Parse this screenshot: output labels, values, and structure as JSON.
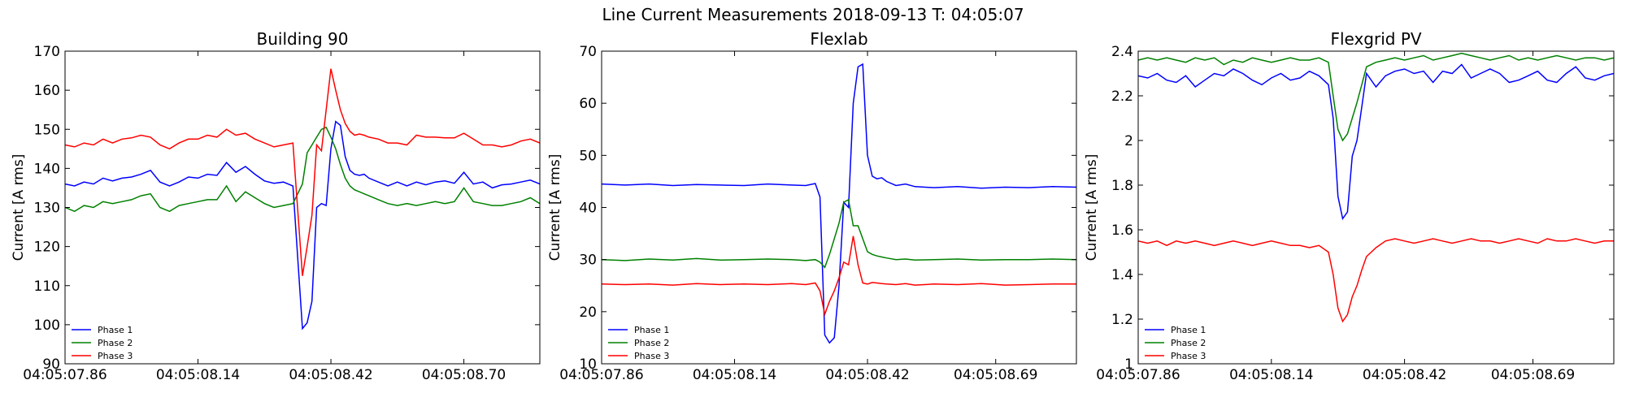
{
  "suptitle": "Line Current Measurements 2018-09-13 T: 04:05:07",
  "chart_data": [
    {
      "type": "line",
      "title": "Building 90",
      "xlabel": "",
      "ylabel": "Current [A rms]",
      "ylim": [
        90,
        170
      ],
      "yticks": [
        90,
        100,
        110,
        120,
        130,
        140,
        150,
        160,
        170
      ],
      "xlim": [
        0,
        1.0
      ],
      "xticks": [
        0,
        0.28,
        0.56,
        0.84
      ],
      "xticklabels": [
        "04:05:07.86",
        "04:05:08.14",
        "04:05:08.42",
        "04:05:08.70"
      ],
      "grid": false,
      "legend_position": "lower-left",
      "series": [
        {
          "name": "Phase 1",
          "color": "#0000ff",
          "x": [
            0,
            0.02,
            0.04,
            0.06,
            0.08,
            0.1,
            0.12,
            0.14,
            0.16,
            0.18,
            0.2,
            0.22,
            0.24,
            0.26,
            0.28,
            0.3,
            0.32,
            0.34,
            0.36,
            0.38,
            0.4,
            0.42,
            0.44,
            0.46,
            0.48,
            0.5,
            0.51,
            0.52,
            0.53,
            0.54,
            0.55,
            0.56,
            0.57,
            0.58,
            0.59,
            0.6,
            0.61,
            0.62,
            0.63,
            0.64,
            0.66,
            0.68,
            0.7,
            0.72,
            0.74,
            0.76,
            0.78,
            0.8,
            0.82,
            0.84,
            0.86,
            0.88,
            0.9,
            0.92,
            0.94,
            0.96,
            0.98,
            1.0
          ],
          "y": [
            136,
            135.5,
            136.5,
            136,
            137.5,
            136.8,
            137.5,
            137.8,
            138.5,
            139.5,
            136.5,
            135.5,
            136.5,
            137.8,
            137.5,
            138.5,
            138.2,
            141.5,
            139,
            140.5,
            138.5,
            136.8,
            136.2,
            136.5,
            135.5,
            99,
            100.5,
            106,
            130,
            131,
            130.5,
            145,
            152,
            151,
            143,
            139.5,
            138.5,
            138.2,
            138.5,
            137.5,
            136.5,
            135.5,
            136.5,
            135.5,
            136.5,
            135.8,
            136.5,
            136.8,
            136.2,
            139,
            136,
            136.5,
            135,
            135.8,
            136,
            136.5,
            137,
            136
          ]
        },
        {
          "name": "Phase 2",
          "color": "#008000",
          "x": [
            0,
            0.02,
            0.04,
            0.06,
            0.08,
            0.1,
            0.12,
            0.14,
            0.16,
            0.18,
            0.2,
            0.22,
            0.24,
            0.26,
            0.28,
            0.3,
            0.32,
            0.34,
            0.36,
            0.38,
            0.4,
            0.42,
            0.44,
            0.46,
            0.48,
            0.5,
            0.51,
            0.52,
            0.53,
            0.54,
            0.55,
            0.56,
            0.57,
            0.58,
            0.59,
            0.6,
            0.61,
            0.62,
            0.63,
            0.64,
            0.66,
            0.68,
            0.7,
            0.72,
            0.74,
            0.76,
            0.78,
            0.8,
            0.82,
            0.84,
            0.86,
            0.88,
            0.9,
            0.92,
            0.94,
            0.96,
            0.98,
            1.0
          ],
          "y": [
            130,
            129,
            130.5,
            130,
            131.5,
            131,
            131.5,
            132,
            133,
            133.5,
            130,
            129,
            130.5,
            131,
            131.5,
            132,
            132,
            135.5,
            131.5,
            134,
            132.5,
            131,
            130,
            130.5,
            131,
            136,
            144,
            146,
            148,
            150,
            150.5,
            148,
            145,
            141,
            137.5,
            135.5,
            134.5,
            134,
            133.5,
            133,
            132,
            131,
            130.5,
            131,
            130.5,
            131,
            131.5,
            131,
            131.5,
            135,
            131.5,
            131,
            130.5,
            130.5,
            131,
            131.5,
            132.5,
            131
          ]
        },
        {
          "name": "Phase 3",
          "color": "#ff0000",
          "x": [
            0,
            0.02,
            0.04,
            0.06,
            0.08,
            0.1,
            0.12,
            0.14,
            0.16,
            0.18,
            0.2,
            0.22,
            0.24,
            0.26,
            0.28,
            0.3,
            0.32,
            0.34,
            0.36,
            0.38,
            0.4,
            0.42,
            0.44,
            0.46,
            0.48,
            0.5,
            0.51,
            0.52,
            0.53,
            0.54,
            0.55,
            0.56,
            0.57,
            0.58,
            0.59,
            0.6,
            0.61,
            0.62,
            0.63,
            0.64,
            0.66,
            0.68,
            0.7,
            0.72,
            0.74,
            0.76,
            0.78,
            0.8,
            0.82,
            0.84,
            0.86,
            0.88,
            0.9,
            0.92,
            0.94,
            0.96,
            0.98,
            1.0
          ],
          "y": [
            146,
            145.5,
            146.5,
            146,
            147.5,
            146.5,
            147.5,
            147.8,
            148.5,
            148,
            146,
            145,
            146.5,
            147.5,
            147.5,
            148.5,
            148,
            150,
            148.5,
            149,
            147.5,
            146.5,
            145.5,
            146,
            146.5,
            112.5,
            120,
            128,
            146,
            144.5,
            155,
            165.5,
            160,
            155,
            151.5,
            149.5,
            148.5,
            148.8,
            148.5,
            148,
            147.5,
            146.5,
            146.5,
            146,
            148.5,
            148,
            148,
            147.8,
            147.8,
            149,
            147.5,
            146,
            146,
            145.5,
            146,
            147,
            147.5,
            146.5
          ]
        }
      ]
    },
    {
      "type": "line",
      "title": "Flexlab",
      "xlabel": "",
      "ylabel": "Current [A rms]",
      "ylim": [
        10,
        70
      ],
      "yticks": [
        10,
        20,
        30,
        40,
        50,
        60,
        70
      ],
      "xlim": [
        0,
        1.0
      ],
      "xticks": [
        0,
        0.28,
        0.56,
        0.83
      ],
      "xticklabels": [
        "04:05:07.86",
        "04:05:08.14",
        "04:05:08.42",
        "04:05:08.69"
      ],
      "grid": false,
      "legend_position": "lower-left",
      "series": [
        {
          "name": "Phase 1",
          "color": "#0000ff",
          "x": [
            0,
            0.05,
            0.1,
            0.15,
            0.2,
            0.25,
            0.3,
            0.35,
            0.4,
            0.43,
            0.45,
            0.46,
            0.47,
            0.48,
            0.49,
            0.5,
            0.51,
            0.52,
            0.53,
            0.54,
            0.55,
            0.56,
            0.57,
            0.58,
            0.59,
            0.6,
            0.62,
            0.64,
            0.66,
            0.7,
            0.75,
            0.8,
            0.85,
            0.9,
            0.95,
            1.0
          ],
          "y": [
            44.5,
            44.3,
            44.5,
            44.2,
            44.4,
            44.3,
            44.2,
            44.5,
            44.3,
            44.2,
            44.6,
            42,
            15.5,
            14,
            15,
            25,
            41,
            40,
            60,
            67,
            67.5,
            50,
            46,
            45.5,
            45.7,
            45,
            44.2,
            44.5,
            44,
            43.8,
            44,
            43.7,
            43.9,
            43.8,
            44,
            43.9
          ]
        },
        {
          "name": "Phase 2",
          "color": "#008000",
          "x": [
            0,
            0.05,
            0.1,
            0.15,
            0.2,
            0.25,
            0.3,
            0.35,
            0.4,
            0.43,
            0.45,
            0.46,
            0.47,
            0.48,
            0.49,
            0.5,
            0.51,
            0.52,
            0.53,
            0.54,
            0.55,
            0.56,
            0.57,
            0.58,
            0.59,
            0.6,
            0.62,
            0.64,
            0.66,
            0.7,
            0.75,
            0.8,
            0.85,
            0.9,
            0.95,
            1.0
          ],
          "y": [
            30,
            29.8,
            30.1,
            29.9,
            30.2,
            29.9,
            30,
            30.1,
            30,
            29.8,
            30,
            29.5,
            28.5,
            31,
            34,
            37,
            41,
            41.5,
            36.5,
            36.5,
            34,
            31.5,
            31,
            30.7,
            30.5,
            30.3,
            30,
            30.1,
            29.9,
            30,
            30.1,
            29.9,
            30,
            30,
            30.1,
            30
          ]
        },
        {
          "name": "Phase 3",
          "color": "#ff0000",
          "x": [
            0,
            0.05,
            0.1,
            0.15,
            0.2,
            0.25,
            0.3,
            0.35,
            0.4,
            0.43,
            0.45,
            0.46,
            0.47,
            0.48,
            0.49,
            0.5,
            0.51,
            0.52,
            0.53,
            0.54,
            0.55,
            0.56,
            0.57,
            0.58,
            0.59,
            0.6,
            0.62,
            0.64,
            0.66,
            0.7,
            0.75,
            0.8,
            0.85,
            0.9,
            0.95,
            1.0
          ],
          "y": [
            25.3,
            25.2,
            25.3,
            25.1,
            25.4,
            25.2,
            25.3,
            25.2,
            25.4,
            25.2,
            25.5,
            24,
            19.5,
            22,
            24,
            26.5,
            29.5,
            29,
            34.5,
            29,
            25.5,
            25.3,
            25.6,
            25.5,
            25.4,
            25.3,
            25.2,
            25.4,
            25.1,
            25.3,
            25.2,
            25.4,
            25.1,
            25.2,
            25.3,
            25.3
          ]
        }
      ]
    },
    {
      "type": "line",
      "title": "Flexgrid PV",
      "xlabel": "",
      "ylabel": "Current [A rms]",
      "ylim": [
        1.0,
        2.4
      ],
      "yticks": [
        1.0,
        1.2,
        1.4,
        1.6,
        1.8,
        2.0,
        2.2,
        2.4
      ],
      "xlim": [
        0,
        1.0
      ],
      "xticks": [
        0,
        0.28,
        0.56,
        0.83
      ],
      "xticklabels": [
        "04:05:07.86",
        "04:05:08.14",
        "04:05:08.42",
        "04:05:08.69"
      ],
      "grid": false,
      "legend_position": "lower-left",
      "series": [
        {
          "name": "Phase 1",
          "color": "#0000ff",
          "x": [
            0,
            0.02,
            0.04,
            0.06,
            0.08,
            0.1,
            0.12,
            0.14,
            0.16,
            0.18,
            0.2,
            0.22,
            0.24,
            0.26,
            0.28,
            0.3,
            0.32,
            0.34,
            0.36,
            0.38,
            0.4,
            0.41,
            0.42,
            0.43,
            0.44,
            0.45,
            0.46,
            0.47,
            0.48,
            0.5,
            0.52,
            0.54,
            0.56,
            0.58,
            0.6,
            0.62,
            0.64,
            0.66,
            0.68,
            0.7,
            0.72,
            0.74,
            0.76,
            0.78,
            0.8,
            0.82,
            0.84,
            0.86,
            0.88,
            0.9,
            0.92,
            0.94,
            0.96,
            0.98,
            1.0
          ],
          "y": [
            2.29,
            2.28,
            2.3,
            2.27,
            2.26,
            2.29,
            2.24,
            2.27,
            2.3,
            2.29,
            2.32,
            2.3,
            2.27,
            2.25,
            2.28,
            2.3,
            2.27,
            2.28,
            2.31,
            2.29,
            2.25,
            2.1,
            1.75,
            1.65,
            1.68,
            1.93,
            2.0,
            2.15,
            2.3,
            2.24,
            2.29,
            2.31,
            2.32,
            2.3,
            2.31,
            2.26,
            2.31,
            2.3,
            2.34,
            2.28,
            2.3,
            2.32,
            2.3,
            2.26,
            2.27,
            2.29,
            2.31,
            2.27,
            2.26,
            2.3,
            2.33,
            2.28,
            2.27,
            2.29,
            2.3
          ]
        },
        {
          "name": "Phase 2",
          "color": "#008000",
          "x": [
            0,
            0.02,
            0.04,
            0.06,
            0.08,
            0.1,
            0.12,
            0.14,
            0.16,
            0.18,
            0.2,
            0.22,
            0.24,
            0.26,
            0.28,
            0.3,
            0.32,
            0.34,
            0.36,
            0.38,
            0.4,
            0.41,
            0.42,
            0.43,
            0.44,
            0.45,
            0.46,
            0.47,
            0.48,
            0.5,
            0.52,
            0.54,
            0.56,
            0.58,
            0.6,
            0.62,
            0.64,
            0.66,
            0.68,
            0.7,
            0.72,
            0.74,
            0.76,
            0.78,
            0.8,
            0.82,
            0.84,
            0.86,
            0.88,
            0.9,
            0.92,
            0.94,
            0.96,
            0.98,
            1.0
          ],
          "y": [
            2.36,
            2.37,
            2.36,
            2.37,
            2.36,
            2.35,
            2.37,
            2.36,
            2.37,
            2.34,
            2.36,
            2.35,
            2.37,
            2.36,
            2.35,
            2.36,
            2.37,
            2.36,
            2.36,
            2.37,
            2.35,
            2.2,
            2.05,
            2.0,
            2.03,
            2.1,
            2.17,
            2.25,
            2.33,
            2.35,
            2.36,
            2.37,
            2.36,
            2.37,
            2.38,
            2.36,
            2.37,
            2.38,
            2.39,
            2.38,
            2.37,
            2.36,
            2.37,
            2.38,
            2.36,
            2.37,
            2.36,
            2.37,
            2.38,
            2.37,
            2.36,
            2.37,
            2.37,
            2.36,
            2.37
          ]
        },
        {
          "name": "Phase 3",
          "color": "#ff0000",
          "x": [
            0,
            0.02,
            0.04,
            0.06,
            0.08,
            0.1,
            0.12,
            0.14,
            0.16,
            0.18,
            0.2,
            0.22,
            0.24,
            0.26,
            0.28,
            0.3,
            0.32,
            0.34,
            0.36,
            0.38,
            0.4,
            0.41,
            0.42,
            0.43,
            0.44,
            0.45,
            0.46,
            0.47,
            0.48,
            0.5,
            0.52,
            0.54,
            0.56,
            0.58,
            0.6,
            0.62,
            0.64,
            0.66,
            0.68,
            0.7,
            0.72,
            0.74,
            0.76,
            0.78,
            0.8,
            0.82,
            0.84,
            0.86,
            0.88,
            0.9,
            0.92,
            0.94,
            0.96,
            0.98,
            1.0
          ],
          "y": [
            1.55,
            1.54,
            1.55,
            1.53,
            1.55,
            1.54,
            1.55,
            1.54,
            1.53,
            1.54,
            1.55,
            1.54,
            1.53,
            1.54,
            1.55,
            1.54,
            1.53,
            1.53,
            1.52,
            1.53,
            1.5,
            1.4,
            1.25,
            1.19,
            1.22,
            1.3,
            1.35,
            1.42,
            1.48,
            1.52,
            1.55,
            1.56,
            1.55,
            1.54,
            1.55,
            1.56,
            1.55,
            1.54,
            1.55,
            1.56,
            1.55,
            1.55,
            1.54,
            1.55,
            1.56,
            1.55,
            1.54,
            1.56,
            1.55,
            1.55,
            1.56,
            1.55,
            1.54,
            1.55,
            1.55
          ]
        }
      ]
    }
  ]
}
